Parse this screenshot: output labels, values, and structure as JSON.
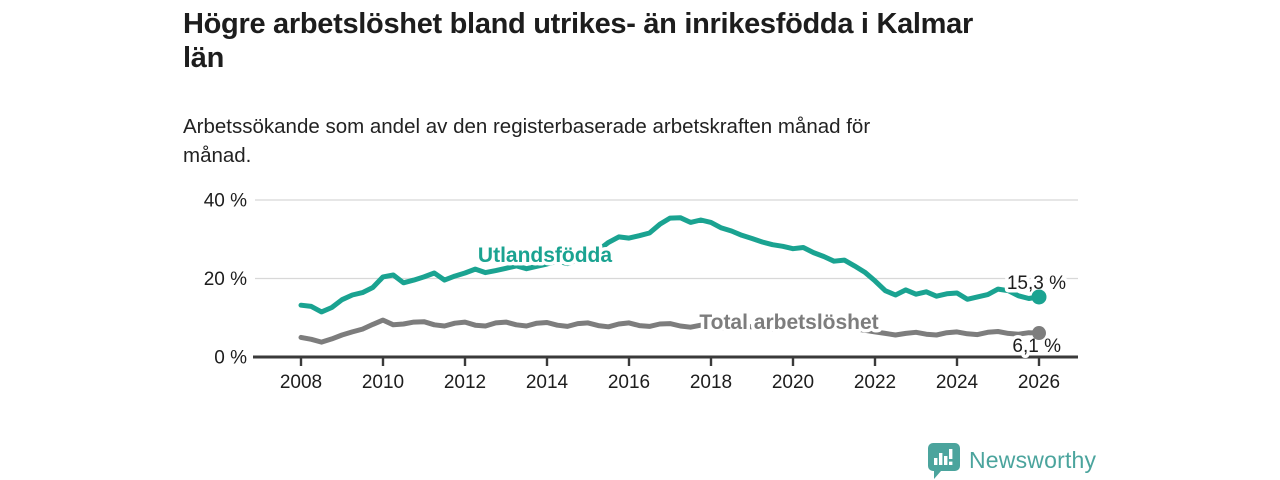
{
  "header": {
    "title_lines": [
      "Högre arbetslöshet bland utrikes- än inrikesfödda i Kalmar",
      "län"
    ],
    "subtitle_lines": [
      "Arbetssökande som andel av den registerbaserade arbetskraften månad för",
      "månad."
    ]
  },
  "chart_data": {
    "type": "line",
    "title": "Högre arbetslöshet bland utrikes- än inrikesfödda i Kalmar län",
    "subtitle": "Arbetssökande som andel av den registerbaserade arbetskraften månad för månad.",
    "xlabel": "",
    "ylabel": "",
    "ylim": [
      0,
      40
    ],
    "xlim": [
      2007.9,
      2027
    ],
    "grid": "horizontal",
    "legend_position": "inline-labels",
    "x_axis": {
      "ticks": [
        {
          "value": 2008,
          "label": "2008"
        },
        {
          "value": 2010,
          "label": "2010"
        },
        {
          "value": 2012,
          "label": "2012"
        },
        {
          "value": 2014,
          "label": "2014"
        },
        {
          "value": 2016,
          "label": "2016"
        },
        {
          "value": 2018,
          "label": "2018"
        },
        {
          "value": 2020,
          "label": "2020"
        },
        {
          "value": 2022,
          "label": "2022"
        },
        {
          "value": 2024,
          "label": "2024"
        },
        {
          "value": 2026,
          "label": "2026"
        }
      ]
    },
    "y_axis": {
      "ticks": [
        {
          "value": 0,
          "label": "0 %"
        },
        {
          "value": 20,
          "label": "20 %"
        },
        {
          "value": 40,
          "label": "40 %"
        }
      ]
    },
    "x_unit": "decimal_year_quarterly",
    "x": [
      2008.0,
      2008.25,
      2008.5,
      2008.75,
      2009.0,
      2009.25,
      2009.5,
      2009.75,
      2010.0,
      2010.25,
      2010.5,
      2010.75,
      2011.0,
      2011.25,
      2011.5,
      2011.75,
      2012.0,
      2012.25,
      2012.5,
      2012.75,
      2013.0,
      2013.25,
      2013.5,
      2013.75,
      2014.0,
      2014.25,
      2014.5,
      2014.75,
      2015.0,
      2015.25,
      2015.5,
      2015.75,
      2016.0,
      2016.25,
      2016.5,
      2016.75,
      2017.0,
      2017.25,
      2017.5,
      2017.75,
      2018.0,
      2018.25,
      2018.5,
      2018.75,
      2019.0,
      2019.25,
      2019.5,
      2019.75,
      2020.0,
      2020.25,
      2020.5,
      2020.75,
      2021.0,
      2021.25,
      2021.5,
      2021.75,
      2022.0,
      2022.25,
      2022.5,
      2022.75,
      2023.0,
      2023.25,
      2023.5,
      2023.75,
      2024.0,
      2024.25,
      2024.5,
      2024.75,
      2025.0,
      2025.25,
      2025.5,
      2025.75,
      2026.0
    ],
    "series": [
      {
        "name": "Utlandsfödda",
        "color": "#1aa391",
        "end_label": "15,3 %",
        "end_value": 15.3,
        "values": [
          13.2,
          12.9,
          11.5,
          12.6,
          14.6,
          15.8,
          16.4,
          17.7,
          20.4,
          20.9,
          18.9,
          19.6,
          20.4,
          21.4,
          19.6,
          20.6,
          21.4,
          22.4,
          21.5,
          22.0,
          22.6,
          23.2,
          22.5,
          23.1,
          23.7,
          24.4,
          23.8,
          24.8,
          25.8,
          27.2,
          29.2,
          30.6,
          30.3,
          30.9,
          31.6,
          33.8,
          35.4,
          35.5,
          34.3,
          34.9,
          34.3,
          32.9,
          32.1,
          31.0,
          30.2,
          29.3,
          28.6,
          28.2,
          27.6,
          27.9,
          26.6,
          25.6,
          24.4,
          24.7,
          23.2,
          21.6,
          19.4,
          16.9,
          15.8,
          17.1,
          16.0,
          16.6,
          15.5,
          16.1,
          16.3,
          14.7,
          15.3,
          15.9,
          17.3,
          16.9,
          15.6,
          14.9,
          15.3
        ]
      },
      {
        "name": "Total arbetslöshet",
        "color": "#7d7d7d",
        "end_label": "6,1 %",
        "end_value": 6.1,
        "values": [
          5.0,
          4.5,
          3.8,
          4.6,
          5.6,
          6.4,
          7.1,
          8.3,
          9.4,
          8.2,
          8.4,
          8.9,
          9.0,
          8.2,
          7.9,
          8.6,
          8.9,
          8.1,
          7.9,
          8.7,
          8.9,
          8.2,
          7.9,
          8.6,
          8.8,
          8.1,
          7.8,
          8.5,
          8.7,
          8.0,
          7.7,
          8.4,
          8.7,
          8.0,
          7.8,
          8.4,
          8.5,
          7.9,
          7.6,
          8.1,
          8.0,
          7.4,
          7.2,
          7.7,
          7.7,
          7.2,
          7.1,
          7.6,
          8.7,
          9.3,
          8.9,
          8.6,
          8.3,
          7.7,
          7.2,
          6.8,
          6.4,
          6.0,
          5.6,
          6.0,
          6.3,
          5.8,
          5.6,
          6.2,
          6.4,
          5.9,
          5.7,
          6.3,
          6.5,
          6.0,
          5.8,
          6.2,
          6.1
        ]
      }
    ]
  },
  "branding": {
    "logo_text": "Newsworthy",
    "logo_color": "#4ba49d",
    "logo_icon": "speech-bubble-bar-chart"
  },
  "colors": {
    "accent_teal": "#1aa391",
    "series_gray": "#7d7d7d",
    "axis": "#3a3a3a",
    "gridline": "#d8d8d8",
    "text": "#1d1d1d"
  }
}
